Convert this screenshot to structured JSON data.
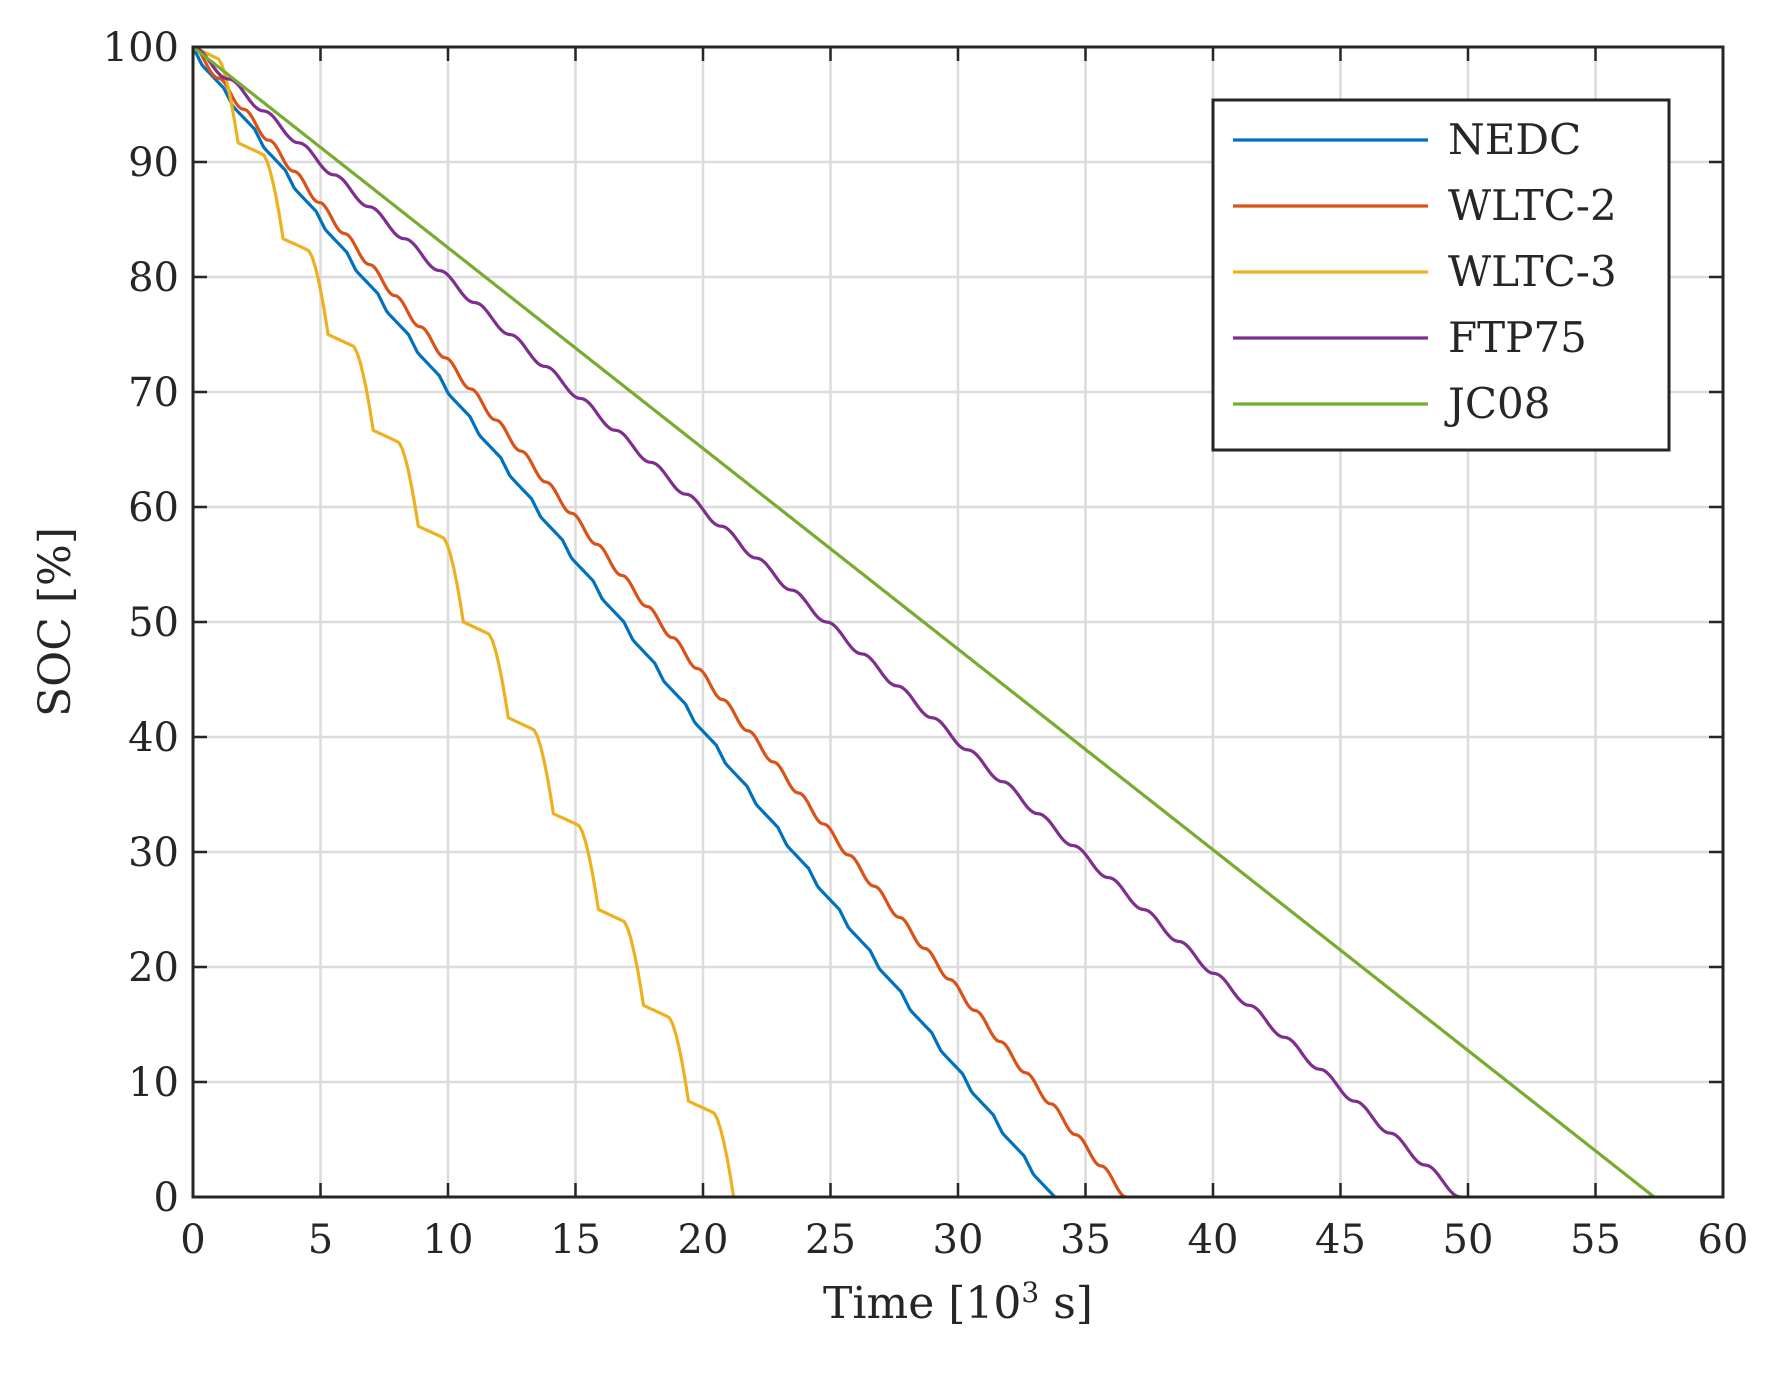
{
  "chart_data": {
    "type": "line",
    "title": "",
    "xlabel": "Time [10",
    "xlabel_sup": "3",
    "xlabel_suffix": " s]",
    "ylabel": "SOC [%]",
    "xlim": [
      0,
      60
    ],
    "ylim": [
      0,
      100
    ],
    "xticks": [
      0,
      5,
      10,
      15,
      20,
      25,
      30,
      35,
      40,
      45,
      50,
      55,
      60
    ],
    "xtick_labels": [
      "0",
      "5",
      "10",
      "15",
      "20",
      "25",
      "30",
      "35",
      "40",
      "45",
      "50",
      "55",
      "60"
    ],
    "yticks": [
      0,
      10,
      20,
      30,
      40,
      50,
      60,
      70,
      80,
      90,
      100
    ],
    "ytick_labels": [
      "0",
      "10",
      "20",
      "30",
      "40",
      "50",
      "60",
      "70",
      "80",
      "90",
      "100"
    ],
    "grid": true,
    "legend_position": "top-right",
    "series": [
      {
        "name": "NEDC",
        "color": "#0072BD",
        "end_x": 33.8,
        "step_period": 1.2,
        "step_drop": 3.55,
        "step_style": "sawtooth"
      },
      {
        "name": "WLTC-2",
        "color": "#D95319",
        "end_x": 36.6,
        "step_period": 1.0,
        "step_drop": 2.73,
        "step_style": "smooth"
      },
      {
        "name": "WLTC-3",
        "color": "#EDB120",
        "end_x": 21.2,
        "step_period": 1.8,
        "step_drop": 8.5,
        "step_style": "stair"
      },
      {
        "name": "FTP75",
        "color": "#7E2F8E",
        "end_x": 49.7,
        "step_period": 1.4,
        "step_drop": 2.82,
        "step_style": "smooth"
      },
      {
        "name": "JC08",
        "color": "#77AC30",
        "end_x": 57.3,
        "step_period": 0.5,
        "step_drop": 0.87,
        "step_style": "fine"
      }
    ]
  }
}
